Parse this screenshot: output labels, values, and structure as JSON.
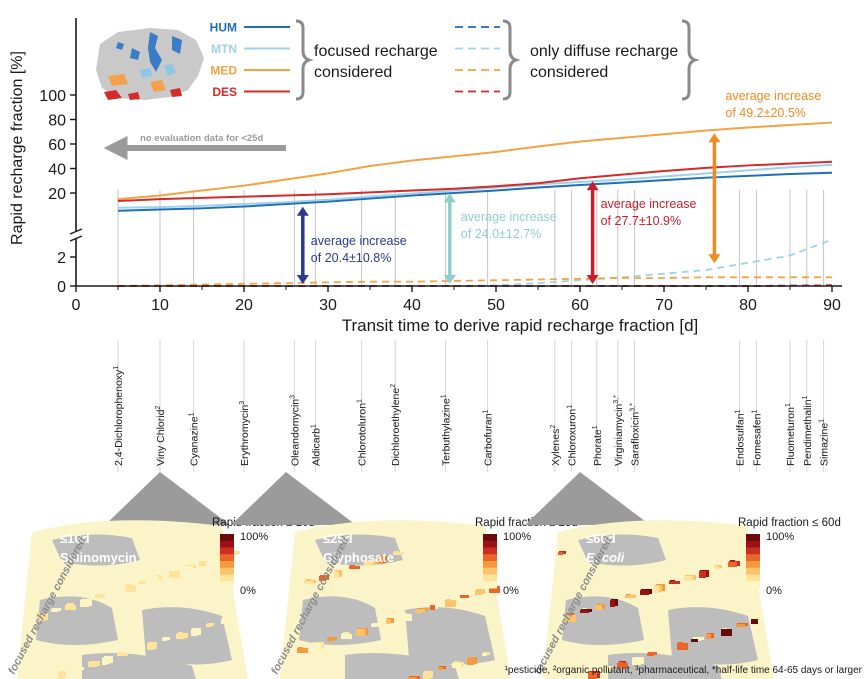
{
  "chart_data": {
    "type": "line",
    "xlabel": "Transit time to derive rapid recharge fraction [d]",
    "ylabel": "Rapid recharge fraction [%]",
    "xlim": [
      0,
      90
    ],
    "ylim_upper": [
      0,
      100
    ],
    "ylim_lower": [
      0,
      3
    ],
    "x_ticks": [
      "0",
      "10",
      "20",
      "30",
      "40",
      "50",
      "60",
      "70",
      "80",
      "90"
    ],
    "y_ticks_upper": [
      "20",
      "40",
      "60",
      "80",
      "100"
    ],
    "y_ticks_lower": [
      "0",
      "2"
    ],
    "legend": {
      "focused_label_1": "focused recharge",
      "focused_label_2": "considered",
      "diffuse_label_1": "only diffuse recharge",
      "diffuse_label_2": "considered"
    },
    "x": [
      5,
      10,
      15,
      20,
      25,
      30,
      35,
      40,
      45,
      50,
      55,
      60,
      65,
      70,
      75,
      80,
      85,
      90
    ],
    "series": [
      {
        "name": "HUM",
        "color": "#1f6fb8",
        "focused": [
          5.5,
          6.5,
          7.5,
          9,
          11,
          13,
          15.5,
          18,
          20,
          22,
          24.5,
          26.5,
          28.5,
          30.5,
          32.5,
          34,
          35.5,
          36.5
        ],
        "diffuse": [
          0,
          0,
          0,
          0,
          0,
          0,
          0,
          0,
          0,
          0,
          0,
          0,
          0,
          0,
          0,
          0,
          0.02,
          0.05
        ]
      },
      {
        "name": "MTN",
        "color": "#9fd1e8",
        "focused": [
          8,
          8.5,
          9.5,
          11,
          12.5,
          14.5,
          17,
          19.5,
          22,
          24.5,
          27,
          29,
          31,
          33.5,
          36,
          38.5,
          41,
          43
        ],
        "diffuse": [
          0,
          0,
          0,
          0,
          0,
          0,
          0,
          0,
          0,
          0.05,
          0.2,
          0.4,
          0.6,
          0.85,
          1.1,
          1.6,
          2.1,
          3.2
        ]
      },
      {
        "name": "MED",
        "color": "#f5a243",
        "focused": [
          15,
          18,
          22,
          26,
          31,
          36,
          42,
          46.5,
          50,
          53.5,
          58,
          62,
          65,
          68,
          71,
          73.5,
          75.5,
          77.5
        ],
        "diffuse": [
          0,
          0.05,
          0.1,
          0.15,
          0.2,
          0.25,
          0.3,
          0.3,
          0.35,
          0.4,
          0.45,
          0.5,
          0.55,
          0.55,
          0.6,
          0.6,
          0.6,
          0.6
        ]
      },
      {
        "name": "DES",
        "color": "#d42a2a",
        "focused": [
          13.5,
          15,
          16,
          17,
          18,
          19,
          20.5,
          22,
          23.5,
          25.5,
          28,
          32,
          35,
          38,
          40.5,
          42.5,
          44,
          45.5
        ],
        "diffuse": [
          0,
          0,
          0,
          0,
          0,
          0,
          0,
          0,
          0,
          0,
          0,
          0,
          0,
          0,
          0,
          0,
          0.02,
          0.05
        ]
      }
    ],
    "annotations": [
      {
        "text": "no evaluation data for <25d",
        "x_from": 25,
        "x_to": 4
      },
      {
        "line1": "average increase",
        "line2": "of 20.4±10.8%",
        "x": 27,
        "from_low": 0,
        "to_high": 12,
        "color": "#2a3a8f"
      },
      {
        "line1": "average increase",
        "line2": "of 24.0±12.7%",
        "x": 44.5,
        "from_low": 0,
        "to_high": 23,
        "color": "#8ecfcc"
      },
      {
        "line1": "average increase",
        "line2": "of 27.7±10.9%",
        "x": 61.5,
        "from_low": 0,
        "to_high": 33,
        "color": "#c8202a"
      },
      {
        "line1": "average increase",
        "line2": "of 49.2±20.5%",
        "x": 76,
        "from_low": 1.5,
        "to_high": 72,
        "color": "#f08a22"
      }
    ]
  },
  "substances": [
    {
      "label": "2,4-Dichlorophenoxy",
      "sup": "1",
      "x": 5
    },
    {
      "label": "Viny Chlorid",
      "sup": "2",
      "x": 10
    },
    {
      "label": "Cyanazine",
      "sup": "1",
      "x": 14
    },
    {
      "label": "Erythromycin",
      "sup": "3",
      "x": 20
    },
    {
      "label": "Oleandomycin",
      "sup": "3",
      "x": 26
    },
    {
      "label": "Aldicarb",
      "sup": "1",
      "x": 28.5
    },
    {
      "label": "Chlorotoluron",
      "sup": "1",
      "x": 34
    },
    {
      "label": "Dichloroethylene",
      "sup": "2",
      "x": 38
    },
    {
      "label": "Terbuthylazine",
      "sup": "1",
      "x": 44
    },
    {
      "label": "Carbofuran",
      "sup": "1",
      "x": 49
    },
    {
      "label": "Xylenes",
      "sup": "2",
      "x": 57
    },
    {
      "label": "Chloroxuron",
      "sup": "1",
      "x": 59
    },
    {
      "label": "Phorate",
      "sup": "1",
      "x": 62
    },
    {
      "label": "Virginiamycin",
      "sup": "3,*",
      "x": 64.5
    },
    {
      "label": "Sarafloxicin",
      "sup": "3,*",
      "x": 66.5
    },
    {
      "label": "Endosulfan",
      "sup": "1",
      "x": 79
    },
    {
      "label": "Fomesafen",
      "sup": "1",
      "x": 81
    },
    {
      "label": "Fluometuron",
      "sup": "1",
      "x": 85
    },
    {
      "label": "Pendimethalin",
      "sup": "1",
      "x": 87
    },
    {
      "label": "Simazine",
      "sup": "1",
      "x": 89
    }
  ],
  "maps": [
    {
      "badge": "≤10d",
      "name": "Salinomycin",
      "italic": false,
      "scale_title": "Rapid fraction ≤ 10d",
      "scale_max": "100%",
      "scale_min": "0%",
      "side": "focused recharge considered",
      "x": 10,
      "level": 0.15
    },
    {
      "badge": "≤25d",
      "name": "Glyphosate",
      "italic": false,
      "scale_title": "Rapid fraction ≤ 25d",
      "scale_max": "100%",
      "scale_min": "0%",
      "side": "focused recharge considered",
      "x": 25,
      "level": 0.35
    },
    {
      "badge": "≤60d",
      "name": "E. coli",
      "italic": true,
      "scale_title": "Rapid fraction ≤ 60d",
      "scale_max": "100%",
      "scale_min": "0%",
      "side": "focused recharge considered",
      "x": 60,
      "level": 0.65
    }
  ],
  "footnote": "¹pesticide, ²organic pollutant, ³pharmaceutical, *half-life time 64-65 days or larger",
  "colors": {
    "gray": "#9b9b9b",
    "axis": "#1a1a1a",
    "ramp": [
      "#fdf6c3",
      "#fde49a",
      "#fbc46a",
      "#f59a3d",
      "#e9652a",
      "#cc2f22",
      "#9a1216",
      "#6a0a0c"
    ]
  }
}
